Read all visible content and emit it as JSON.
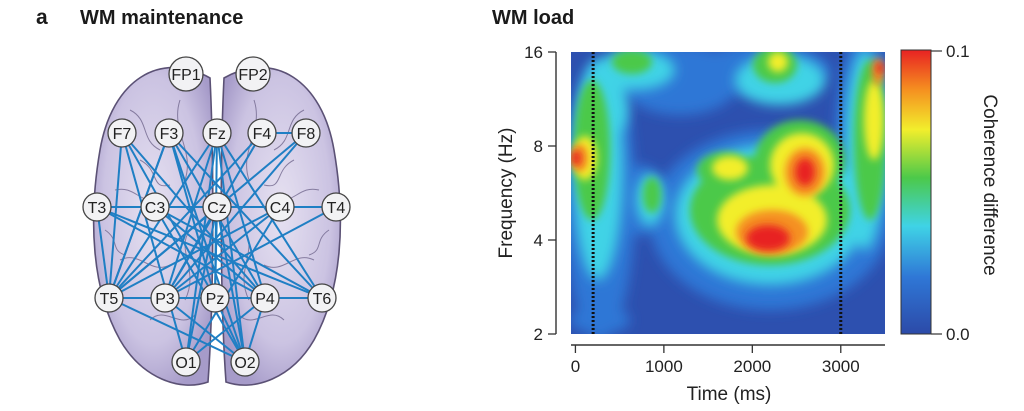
{
  "panel_letter": "a",
  "left_title": "WM maintenance",
  "right_title": "WM load",
  "electrodes": [
    {
      "id": "FP1",
      "label": "FP1"
    },
    {
      "id": "FP2",
      "label": "FP2"
    },
    {
      "id": "F7",
      "label": "F7"
    },
    {
      "id": "F3",
      "label": "F3"
    },
    {
      "id": "Fz",
      "label": "Fz"
    },
    {
      "id": "F4",
      "label": "F4"
    },
    {
      "id": "F8",
      "label": "F8"
    },
    {
      "id": "T3",
      "label": "T3"
    },
    {
      "id": "C3",
      "label": "C3"
    },
    {
      "id": "Cz",
      "label": "Cz"
    },
    {
      "id": "C4",
      "label": "C4"
    },
    {
      "id": "T4",
      "label": "T4"
    },
    {
      "id": "T5",
      "label": "T5"
    },
    {
      "id": "P3",
      "label": "P3"
    },
    {
      "id": "Pz",
      "label": "Pz"
    },
    {
      "id": "P4",
      "label": "P4"
    },
    {
      "id": "T6",
      "label": "T6"
    },
    {
      "id": "O1",
      "label": "O1"
    },
    {
      "id": "O2",
      "label": "O2"
    }
  ],
  "connections": [
    [
      "F7",
      "Pz"
    ],
    [
      "F7",
      "P4"
    ],
    [
      "F7",
      "O1"
    ],
    [
      "F7",
      "T5"
    ],
    [
      "F3",
      "Pz"
    ],
    [
      "F3",
      "P4"
    ],
    [
      "F3",
      "O2"
    ],
    [
      "F3",
      "T5"
    ],
    [
      "F3",
      "T6"
    ],
    [
      "Fz",
      "T5"
    ],
    [
      "Fz",
      "P3"
    ],
    [
      "Fz",
      "Pz"
    ],
    [
      "Fz",
      "P4"
    ],
    [
      "Fz",
      "O1"
    ],
    [
      "Fz",
      "O2"
    ],
    [
      "Fz",
      "T6"
    ],
    [
      "F4",
      "F8"
    ],
    [
      "F4",
      "T5"
    ],
    [
      "F4",
      "P3"
    ],
    [
      "F8",
      "P3"
    ],
    [
      "F8",
      "T5"
    ],
    [
      "T3",
      "T4"
    ],
    [
      "T3",
      "T5"
    ],
    [
      "T3",
      "P4"
    ],
    [
      "T3",
      "T6"
    ],
    [
      "C3",
      "P4"
    ],
    [
      "C3",
      "O2"
    ],
    [
      "C3",
      "T6"
    ],
    [
      "Cz",
      "T5"
    ],
    [
      "Cz",
      "P3"
    ],
    [
      "Cz",
      "Pz"
    ],
    [
      "Cz",
      "O1"
    ],
    [
      "Cz",
      "O2"
    ],
    [
      "C4",
      "T5"
    ],
    [
      "C4",
      "P3"
    ],
    [
      "C4",
      "O1"
    ],
    [
      "T5",
      "T6"
    ],
    [
      "T5",
      "O2"
    ],
    [
      "T5",
      "P4"
    ],
    [
      "P3",
      "O2"
    ],
    [
      "P3",
      "T6"
    ],
    [
      "Pz",
      "O2"
    ],
    [
      "P4",
      "O1"
    ],
    [
      "P4",
      "O2"
    ],
    [
      "T5",
      "F3"
    ],
    [
      "T4",
      "P3"
    ]
  ],
  "heatmap": {
    "y_ticks": [
      "16",
      "8",
      "4",
      "2"
    ],
    "x_ticks": [
      "0",
      "1000",
      "2000",
      "3000"
    ],
    "x_tick_values": [
      0,
      1000,
      2000,
      3000
    ],
    "x_range": [
      -50,
      3500
    ],
    "marker_times": [
      200,
      3000
    ],
    "xlabel": "Time (ms)",
    "ylabel": "Frequency (Hz)",
    "colorbar_label": "Coherence difference",
    "colorbar_ticks": [
      "0.1",
      "0.0"
    ],
    "colors": {
      "low": "#2c4aa8",
      "cyan": "#3fd3e6",
      "green": "#4cc94a",
      "yellow": "#f2ee2c",
      "orange": "#f59020",
      "red": "#e82222"
    }
  }
}
